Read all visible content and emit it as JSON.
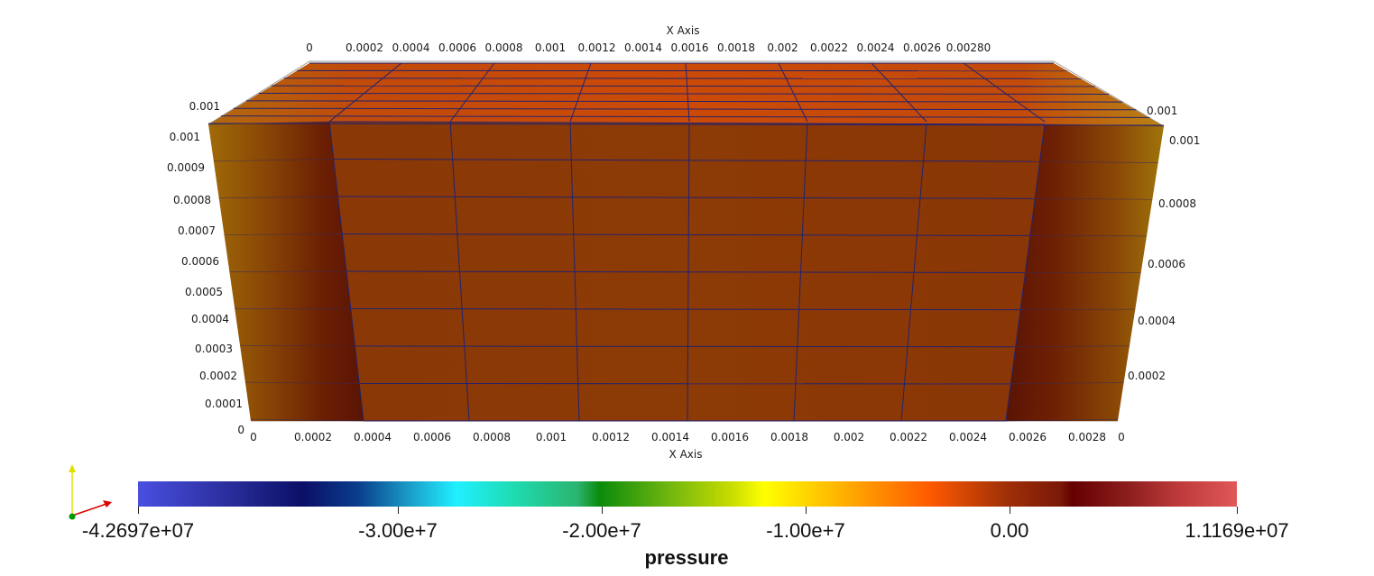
{
  "app": {
    "view": "3D render view"
  },
  "axes": {
    "top_title": "X Axis",
    "bottom_title": "X Axis",
    "top_ticks": [
      "0",
      "0.0002",
      "0.0004",
      "0.0006",
      "0.0008",
      "0.001",
      "0.0012",
      "0.0014",
      "0.0016",
      "0.0018",
      "0.002",
      "0.0022",
      "0.0024",
      "0.0026",
      "0.00280"
    ],
    "bottom_ticks": [
      "0",
      "0.0002",
      "0.0004",
      "0.0006",
      "0.0008",
      "0.001",
      "0.0012",
      "0.0014",
      "0.0016",
      "0.0018",
      "0.002",
      "0.0022",
      "0.0024",
      "0.0026",
      "0.0028",
      "0"
    ],
    "left_ticks": [
      "0.001",
      "0.001",
      "0.0009",
      "0.0008",
      "0.0007",
      "0.0006",
      "0.0005",
      "0.0004",
      "0.0003",
      "0.0002",
      "0.0001",
      "0"
    ],
    "right_ticks": [
      "0.001",
      "0.001",
      "0.0008",
      "0.0006",
      "0.0004",
      "0.0002"
    ]
  },
  "colorbar": {
    "title": "pressure",
    "ticks": [
      "-4.2697e+07",
      "-3.00e+7",
      "-2.00e+7",
      "-1.00e+7",
      "0.00",
      "1.1169e+07"
    ]
  },
  "orientation_axes": {
    "x_color": "#e00000",
    "y_color": "#e0e000",
    "z_color": "#00a000"
  },
  "colors": {
    "mesh_face": "#8c3a06",
    "mesh_edge": "#1c1c6e",
    "background": "#ffffff"
  }
}
